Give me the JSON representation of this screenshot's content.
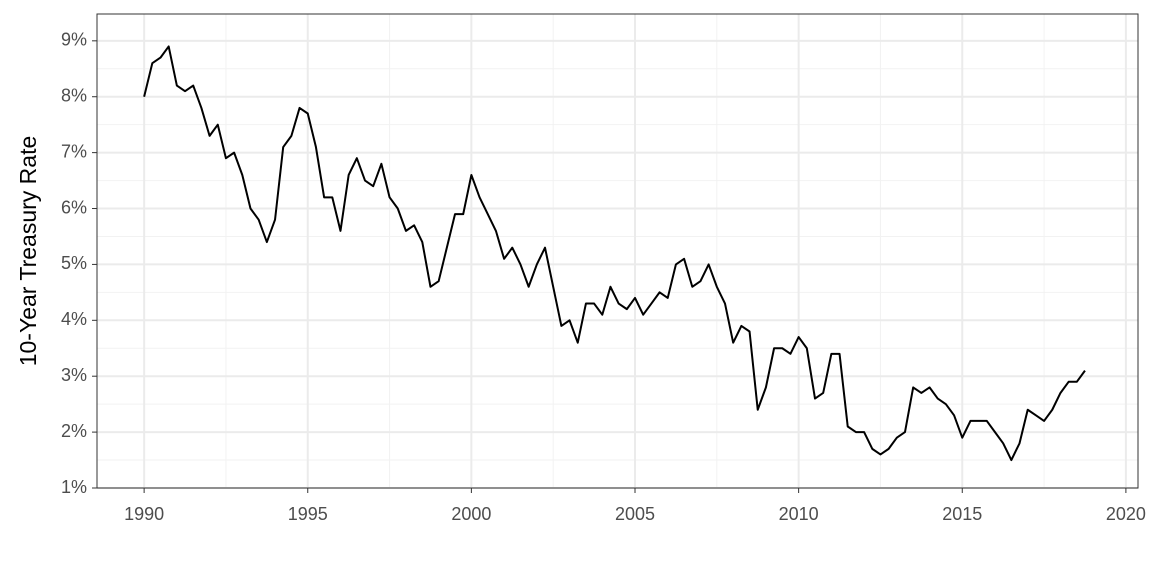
{
  "chart_data": {
    "type": "line",
    "y_label": "10-Year Treasury Rate",
    "x": [
      1990,
      1990.25,
      1990.5,
      1990.75,
      1991,
      1991.25,
      1991.5,
      1991.75,
      1992,
      1992.25,
      1992.5,
      1992.75,
      1993,
      1993.25,
      1993.5,
      1993.75,
      1994,
      1994.25,
      1994.5,
      1994.75,
      1995,
      1995.25,
      1995.5,
      1995.75,
      1996,
      1996.25,
      1996.5,
      1996.75,
      1997,
      1997.25,
      1997.5,
      1997.75,
      1998,
      1998.25,
      1998.5,
      1998.75,
      1999,
      1999.25,
      1999.5,
      1999.75,
      2000,
      2000.25,
      2000.5,
      2000.75,
      2001,
      2001.25,
      2001.5,
      2001.75,
      2002,
      2002.25,
      2002.5,
      2002.75,
      2003,
      2003.25,
      2003.5,
      2003.75,
      2004,
      2004.25,
      2004.5,
      2004.75,
      2005,
      2005.25,
      2005.5,
      2005.75,
      2006,
      2006.25,
      2006.5,
      2006.75,
      2007,
      2007.25,
      2007.5,
      2007.75,
      2008,
      2008.25,
      2008.5,
      2008.75,
      2009,
      2009.25,
      2009.5,
      2009.75,
      2010,
      2010.25,
      2010.5,
      2010.75,
      2011,
      2011.25,
      2011.5,
      2011.75,
      2012,
      2012.25,
      2012.5,
      2012.75,
      2013,
      2013.25,
      2013.5,
      2013.75,
      2014,
      2014.25,
      2014.5,
      2014.75,
      2015,
      2015.25,
      2015.5,
      2015.75,
      2016,
      2016.25,
      2016.5,
      2016.75,
      2017,
      2017.25,
      2017.5,
      2017.75,
      2018,
      2018.25,
      2018.5,
      2018.75
    ],
    "series": [
      {
        "color": "#000000",
        "values": [
          8.0,
          8.6,
          8.7,
          8.9,
          8.2,
          8.1,
          8.2,
          7.8,
          7.3,
          7.5,
          6.9,
          7.0,
          6.6,
          6.0,
          5.8,
          5.4,
          5.8,
          7.1,
          7.3,
          7.8,
          7.7,
          7.1,
          6.2,
          6.2,
          5.6,
          6.6,
          6.9,
          6.5,
          6.4,
          6.8,
          6.2,
          6.0,
          5.6,
          5.7,
          5.4,
          4.6,
          4.7,
          5.3,
          5.9,
          5.9,
          6.6,
          6.2,
          5.9,
          5.6,
          5.1,
          5.3,
          5.0,
          4.6,
          5.0,
          5.3,
          4.6,
          3.9,
          4.0,
          3.6,
          4.3,
          4.3,
          4.1,
          4.6,
          4.3,
          4.2,
          4.4,
          4.1,
          4.3,
          4.5,
          4.4,
          5.0,
          5.1,
          4.6,
          4.7,
          5.0,
          4.6,
          4.3,
          3.6,
          3.9,
          3.8,
          2.4,
          2.8,
          3.5,
          3.5,
          3.4,
          3.7,
          3.5,
          2.6,
          2.7,
          3.4,
          3.4,
          2.1,
          2.0,
          2.0,
          1.7,
          1.6,
          1.7,
          1.9,
          2.0,
          2.8,
          2.7,
          2.8,
          2.6,
          2.5,
          2.3,
          1.9,
          2.2,
          2.2,
          2.2,
          2.0,
          1.8,
          1.5,
          1.8,
          2.4,
          2.3,
          2.2,
          2.4,
          2.7,
          2.9,
          2.9,
          3.1
        ]
      }
    ],
    "xlim": [
      1988.56,
      2020.37
    ],
    "xticks": [
      1990,
      1995,
      2000,
      2005,
      2010,
      2015,
      2020
    ],
    "ylim": [
      1,
      9.48
    ],
    "yticks": [
      {
        "value": 1,
        "label": "1%"
      },
      {
        "value": 2,
        "label": "2%"
      },
      {
        "value": 3,
        "label": "3%"
      },
      {
        "value": 4,
        "label": "4%"
      },
      {
        "value": 5,
        "label": "5%"
      },
      {
        "value": 6,
        "label": "6%"
      },
      {
        "value": 7,
        "label": "7%"
      },
      {
        "value": 8,
        "label": "8%"
      },
      {
        "value": 9,
        "label": "9%"
      }
    ],
    "grid": true
  }
}
